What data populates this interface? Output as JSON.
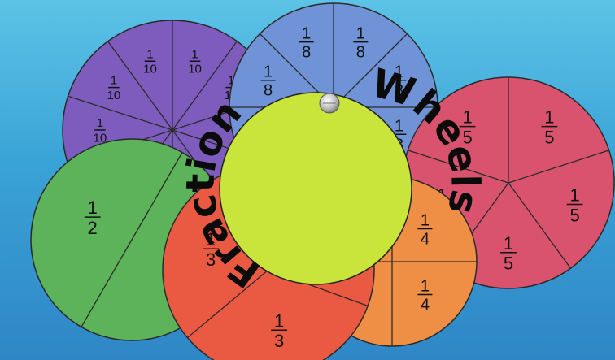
{
  "title": {
    "word1": "Fraction",
    "word2": "Wheels"
  },
  "wheels": {
    "tenths": {
      "color": "#7d5cbd",
      "label": "1/10",
      "numerator": "1",
      "denominator": "10"
    },
    "eighths": {
      "color": "#6f93d6",
      "label": "1/8",
      "numerator": "1",
      "denominator": "8"
    },
    "fifths": {
      "color": "#d9536e",
      "label": "1/5",
      "numerator": "1",
      "denominator": "5"
    },
    "halves": {
      "color": "#5db35a",
      "label": "1/2",
      "numerator": "1",
      "denominator": "2"
    },
    "thirds": {
      "color": "#ea5a43",
      "label": "1/3",
      "numerator": "1",
      "denominator": "3"
    },
    "quarters": {
      "color": "#ef8f45",
      "label": "1/4",
      "numerator": "1",
      "denominator": "4"
    }
  },
  "center_wheel": {
    "color": "#c9e43a"
  }
}
